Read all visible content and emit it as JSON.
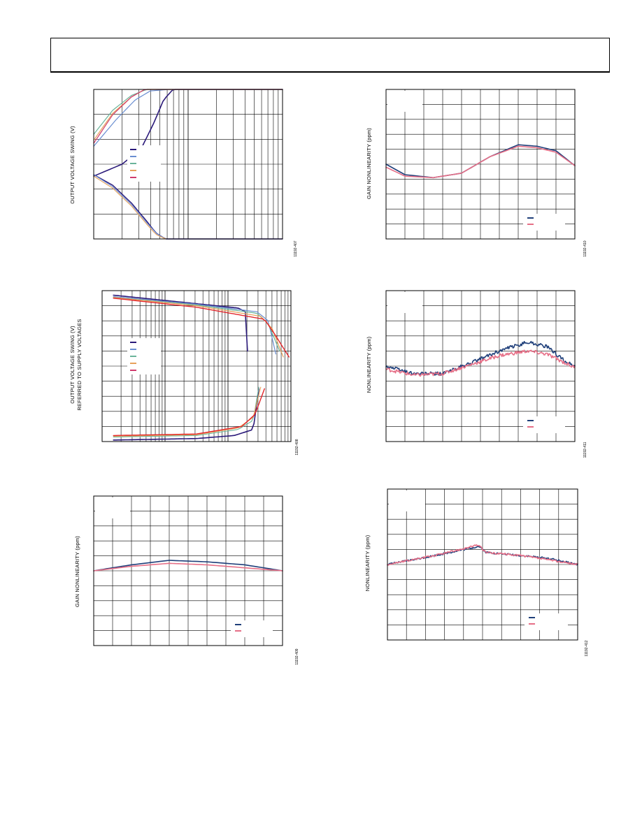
{
  "page": {
    "header_text": ""
  },
  "chart_data": [
    {
      "id": "c1",
      "type": "line",
      "figure_id": "11192-407",
      "ylabel": "OUTPUT VOLTAGE SWING (V)",
      "x_scale": "log",
      "x_decades": 2,
      "v_divisions": 6,
      "colors": [
        "#2b1a7a",
        "#6a8ed1",
        "#6ab49a",
        "#e7a25b",
        "#cf3b6d"
      ],
      "series": [
        {
          "color": "#2b1a7a",
          "width": 1.6,
          "points": [
            [
              0,
              0.42
            ],
            [
              0.15,
              0.5
            ],
            [
              0.25,
              0.6
            ],
            [
              0.32,
              0.78
            ],
            [
              0.37,
              0.93
            ],
            [
              0.42,
              1.0
            ],
            [
              1,
              1.0
            ]
          ]
        },
        {
          "color": "#6a8ed1",
          "width": 1.2,
          "points": [
            [
              0,
              0.62
            ],
            [
              0.12,
              0.8
            ],
            [
              0.22,
              0.93
            ],
            [
              0.3,
              0.99
            ],
            [
              0.4,
              1.0
            ],
            [
              1,
              1.0
            ]
          ]
        },
        {
          "color": "#6ab49a",
          "width": 1.2,
          "points": [
            [
              0,
              0.7
            ],
            [
              0.1,
              0.86
            ],
            [
              0.2,
              0.96
            ],
            [
              0.28,
              1.0
            ],
            [
              1,
              1.0
            ]
          ]
        },
        {
          "color": "#e7a25b",
          "width": 1.2,
          "points": [
            [
              0,
              0.66
            ],
            [
              0.1,
              0.84
            ],
            [
              0.2,
              0.95
            ],
            [
              0.27,
              1.0
            ],
            [
              1,
              1.0
            ]
          ]
        },
        {
          "color": "#cf3b6d",
          "width": 1.2,
          "points": [
            [
              0,
              0.64
            ],
            [
              0.1,
              0.83
            ],
            [
              0.2,
              0.95
            ],
            [
              0.27,
              1.0
            ],
            [
              1,
              1.0
            ]
          ]
        },
        {
          "color": "#2b1a7a",
          "width": 1.4,
          "points": [
            [
              0,
              0.43
            ],
            [
              0.1,
              0.36
            ],
            [
              0.2,
              0.24
            ],
            [
              0.28,
              0.12
            ],
            [
              0.33,
              0.04
            ],
            [
              0.38,
              0.0
            ],
            [
              1,
              0.0
            ]
          ]
        },
        {
          "color": "#6a8ed1",
          "width": 1.1,
          "points": [
            [
              0,
              0.43
            ],
            [
              0.1,
              0.35
            ],
            [
              0.2,
              0.23
            ],
            [
              0.28,
              0.11
            ],
            [
              0.33,
              0.04
            ],
            [
              0.38,
              0.0
            ],
            [
              1,
              0.0
            ]
          ]
        },
        {
          "color": "#e7a25b",
          "width": 1.1,
          "points": [
            [
              0,
              0.42
            ],
            [
              0.1,
              0.34
            ],
            [
              0.2,
              0.22
            ],
            [
              0.28,
              0.1
            ],
            [
              0.33,
              0.03
            ],
            [
              0.38,
              0.0
            ],
            [
              1,
              0.0
            ]
          ]
        }
      ]
    },
    {
      "id": "c2",
      "type": "line",
      "figure_id": "11192-408",
      "ylabel": "OUTPUT VOLTAGE SWING (V)",
      "ylabel2": "REFERRED TO SUPPLY VOLTAGES",
      "x_scale": "log",
      "x_decades": 3,
      "v_divisions": 10,
      "colors": [
        "#2b1a7a",
        "#6a8ed1",
        "#6ab49a",
        "#e7a25b",
        "#cf3b6d"
      ],
      "series": [
        {
          "color": "#2b1a7a",
          "width": 1.6,
          "points": [
            [
              0.06,
              0.97
            ],
            [
              0.45,
              0.92
            ],
            [
              0.72,
              0.885
            ],
            [
              0.76,
              0.86
            ],
            [
              0.77,
              0.6
            ]
          ]
        },
        {
          "color": "#6a8ed1",
          "width": 1.2,
          "points": [
            [
              0.06,
              0.96
            ],
            [
              0.5,
              0.91
            ],
            [
              0.82,
              0.86
            ],
            [
              0.88,
              0.8
            ],
            [
              0.92,
              0.58
            ]
          ]
        },
        {
          "color": "#6ab49a",
          "width": 1.2,
          "points": [
            [
              0.06,
              0.955
            ],
            [
              0.5,
              0.905
            ],
            [
              0.82,
              0.85
            ],
            [
              0.88,
              0.78
            ],
            [
              0.94,
              0.6
            ]
          ]
        },
        {
          "color": "#e7a25b",
          "width": 1.2,
          "points": [
            [
              0.06,
              0.955
            ],
            [
              0.5,
              0.9
            ],
            [
              0.84,
              0.83
            ],
            [
              0.9,
              0.75
            ],
            [
              0.96,
              0.56
            ]
          ]
        },
        {
          "color": "#e3262b",
          "width": 1.4,
          "points": [
            [
              0.06,
              0.95
            ],
            [
              0.5,
              0.89
            ],
            [
              0.86,
              0.81
            ],
            [
              0.92,
              0.7
            ],
            [
              0.99,
              0.56
            ]
          ]
        },
        {
          "color": "#2b1a7a",
          "width": 1.6,
          "points": [
            [
              0.06,
              0.01
            ],
            [
              0.5,
              0.02
            ],
            [
              0.7,
              0.04
            ],
            [
              0.8,
              0.08
            ],
            [
              0.83,
              0.35
            ]
          ]
        },
        {
          "color": "#6ab49a",
          "width": 1.1,
          "points": [
            [
              0.06,
              0.03
            ],
            [
              0.5,
              0.04
            ],
            [
              0.72,
              0.08
            ],
            [
              0.8,
              0.14
            ],
            [
              0.83,
              0.36
            ]
          ]
        },
        {
          "color": "#e7a25b",
          "width": 1.1,
          "points": [
            [
              0.06,
              0.035
            ],
            [
              0.5,
              0.045
            ],
            [
              0.72,
              0.09
            ],
            [
              0.8,
              0.16
            ],
            [
              0.84,
              0.36
            ]
          ]
        },
        {
          "color": "#e3262b",
          "width": 1.4,
          "points": [
            [
              0.06,
              0.04
            ],
            [
              0.5,
              0.05
            ],
            [
              0.74,
              0.1
            ],
            [
              0.81,
              0.18
            ],
            [
              0.86,
              0.35
            ]
          ]
        }
      ]
    },
    {
      "id": "c3",
      "type": "line",
      "figure_id": "11192-409",
      "ylabel": "GAIN NONLINEARITY (ppm)",
      "x_scale": "linear",
      "x_divisions": 10,
      "v_divisions": 10,
      "colors": [
        "#1f3f7a",
        "#e66f87"
      ],
      "series": [
        {
          "color": "#1f3f7a",
          "width": 1.6,
          "points": [
            [
              0,
              0.5
            ],
            [
              0.2,
              0.54
            ],
            [
              0.4,
              0.57
            ],
            [
              0.6,
              0.56
            ],
            [
              0.8,
              0.54
            ],
            [
              1,
              0.5
            ]
          ]
        },
        {
          "color": "#e66f87",
          "width": 1.6,
          "points": [
            [
              0,
              0.5
            ],
            [
              0.2,
              0.53
            ],
            [
              0.4,
              0.55
            ],
            [
              0.6,
              0.54
            ],
            [
              0.8,
              0.52
            ],
            [
              1,
              0.5
            ]
          ]
        }
      ]
    },
    {
      "id": "c4",
      "type": "line",
      "figure_id": "11192-410",
      "ylabel": "GAIN NONLINEARITY (ppm)",
      "x_scale": "linear",
      "x_divisions": 10,
      "v_divisions": 10,
      "colors": [
        "#1f3f7a",
        "#e66f87"
      ],
      "series": [
        {
          "color": "#1f3f7a",
          "width": 1.6,
          "points": [
            [
              0,
              0.5
            ],
            [
              0.1,
              0.43
            ],
            [
              0.25,
              0.41
            ],
            [
              0.4,
              0.44
            ],
            [
              0.55,
              0.55
            ],
            [
              0.7,
              0.63
            ],
            [
              0.8,
              0.62
            ],
            [
              0.9,
              0.59
            ],
            [
              1,
              0.49
            ]
          ]
        },
        {
          "color": "#e66f87",
          "width": 1.6,
          "points": [
            [
              0,
              0.48
            ],
            [
              0.1,
              0.42
            ],
            [
              0.25,
              0.41
            ],
            [
              0.4,
              0.44
            ],
            [
              0.55,
              0.55
            ],
            [
              0.7,
              0.62
            ],
            [
              0.8,
              0.61
            ],
            [
              0.9,
              0.58
            ],
            [
              1,
              0.49
            ]
          ]
        }
      ]
    },
    {
      "id": "c5",
      "type": "line",
      "figure_id": "11192-411",
      "ylabel": "NONLINEARITY (ppm)",
      "x_scale": "linear",
      "x_divisions": 10,
      "v_divisions": 10,
      "noise": 0.012,
      "colors": [
        "#1f3f7a",
        "#e66f87"
      ],
      "series": [
        {
          "color": "#1f3f7a",
          "width": 1.6,
          "points": [
            [
              0,
              0.5
            ],
            [
              0.15,
              0.45
            ],
            [
              0.3,
              0.45
            ],
            [
              0.45,
              0.52
            ],
            [
              0.6,
              0.6
            ],
            [
              0.75,
              0.66
            ],
            [
              0.85,
              0.63
            ],
            [
              0.95,
              0.53
            ],
            [
              1,
              0.5
            ]
          ]
        },
        {
          "color": "#e66f87",
          "width": 1.6,
          "points": [
            [
              0,
              0.48
            ],
            [
              0.15,
              0.44
            ],
            [
              0.3,
              0.45
            ],
            [
              0.45,
              0.51
            ],
            [
              0.6,
              0.57
            ],
            [
              0.75,
              0.6
            ],
            [
              0.85,
              0.58
            ],
            [
              0.95,
              0.52
            ],
            [
              1,
              0.49
            ]
          ]
        }
      ]
    },
    {
      "id": "c6",
      "type": "line",
      "figure_id": "11192-412",
      "ylabel": "NONLINEARITY (ppm)",
      "x_scale": "linear",
      "x_divisions": 10,
      "v_divisions": 10,
      "noise": 0.006,
      "colors": [
        "#1f3f7a",
        "#e66f87"
      ],
      "series": [
        {
          "color": "#1f3f7a",
          "width": 1.6,
          "points": [
            [
              0,
              0.5
            ],
            [
              0.25,
              0.56
            ],
            [
              0.48,
              0.62
            ],
            [
              0.5,
              0.6
            ],
            [
              0.52,
              0.58
            ],
            [
              0.7,
              0.56
            ],
            [
              0.85,
              0.54
            ],
            [
              1,
              0.5
            ]
          ]
        },
        {
          "color": "#e66f87",
          "width": 1.6,
          "points": [
            [
              0,
              0.5
            ],
            [
              0.25,
              0.56
            ],
            [
              0.48,
              0.63
            ],
            [
              0.5,
              0.6
            ],
            [
              0.52,
              0.58
            ],
            [
              0.7,
              0.56
            ],
            [
              0.85,
              0.53
            ],
            [
              1,
              0.5
            ]
          ]
        }
      ]
    }
  ]
}
